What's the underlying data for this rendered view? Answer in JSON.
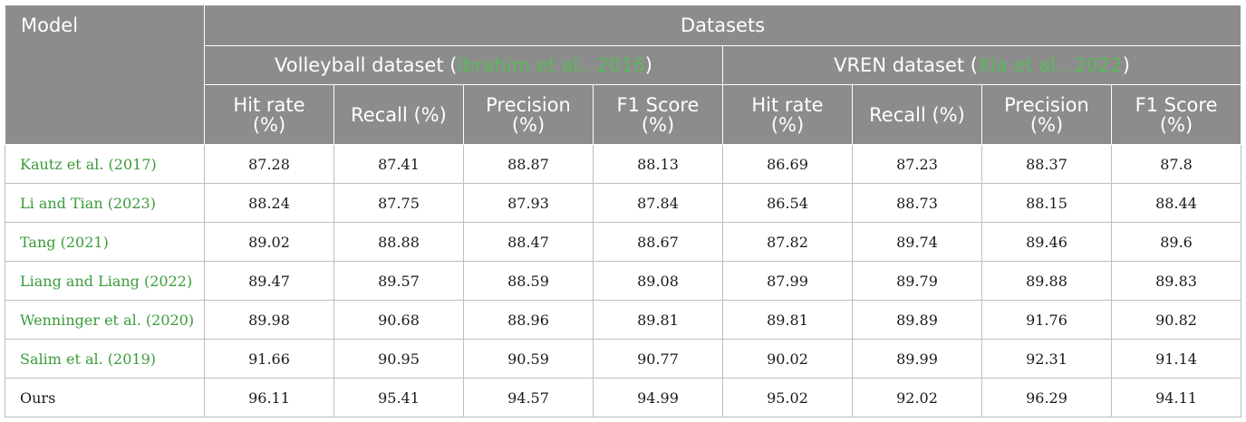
{
  "header": {
    "model": "Model",
    "datasets": "Datasets",
    "group1_name": "Volleyball dataset (",
    "group1_cite": "Ibrahim et al., 2016",
    "group1_close": ")",
    "group2_name": "VREN dataset (",
    "group2_cite": "Xia et al., 2022",
    "group2_close": ")",
    "metrics": [
      "Hit rate",
      "(%)",
      "Recall (%)",
      "Precision",
      "(%)",
      "F1 Score",
      "(%)"
    ]
  },
  "rows": [
    {
      "name": "Kautz et al. (",
      "year": "2017",
      "close": ")",
      "values": [
        "87.28",
        "87.41",
        "88.87",
        "88.13",
        "86.69",
        "87.23",
        "88.37",
        "87.8"
      ]
    },
    {
      "name": "Li and Tian (",
      "year": "2023",
      "close": ")",
      "values": [
        "88.24",
        "87.75",
        "87.93",
        "87.84",
        "86.54",
        "88.73",
        "88.15",
        "88.44"
      ]
    },
    {
      "name": "Tang (",
      "year": "2021",
      "close": ")",
      "values": [
        "89.02",
        "88.88",
        "88.47",
        "88.67",
        "87.82",
        "89.74",
        "89.46",
        "89.6"
      ]
    },
    {
      "name": "Liang and Liang (",
      "year": "2022",
      "close": ")",
      "values": [
        "89.47",
        "89.57",
        "88.59",
        "89.08",
        "87.99",
        "89.79",
        "89.88",
        "89.83"
      ]
    },
    {
      "name": "Wenninger et al. (",
      "year": "2020",
      "close": ")",
      "values": [
        "89.98",
        "90.68",
        "88.96",
        "89.81",
        "89.81",
        "89.89",
        "91.76",
        "90.82"
      ]
    },
    {
      "name": "Salim et al. (",
      "year": "2019",
      "close": ")",
      "values": [
        "91.66",
        "90.95",
        "90.59",
        "90.77",
        "90.02",
        "89.99",
        "92.31",
        "91.14"
      ]
    },
    {
      "name": "Ours",
      "year": "",
      "close": "",
      "values": [
        "96.11",
        "95.41",
        "94.57",
        "94.99",
        "95.02",
        "92.02",
        "96.29",
        "94.11"
      ]
    }
  ],
  "colors": {
    "header_bg": "#8c8c8c",
    "citation": "#5cb85c",
    "border": "#bdbdbd"
  }
}
